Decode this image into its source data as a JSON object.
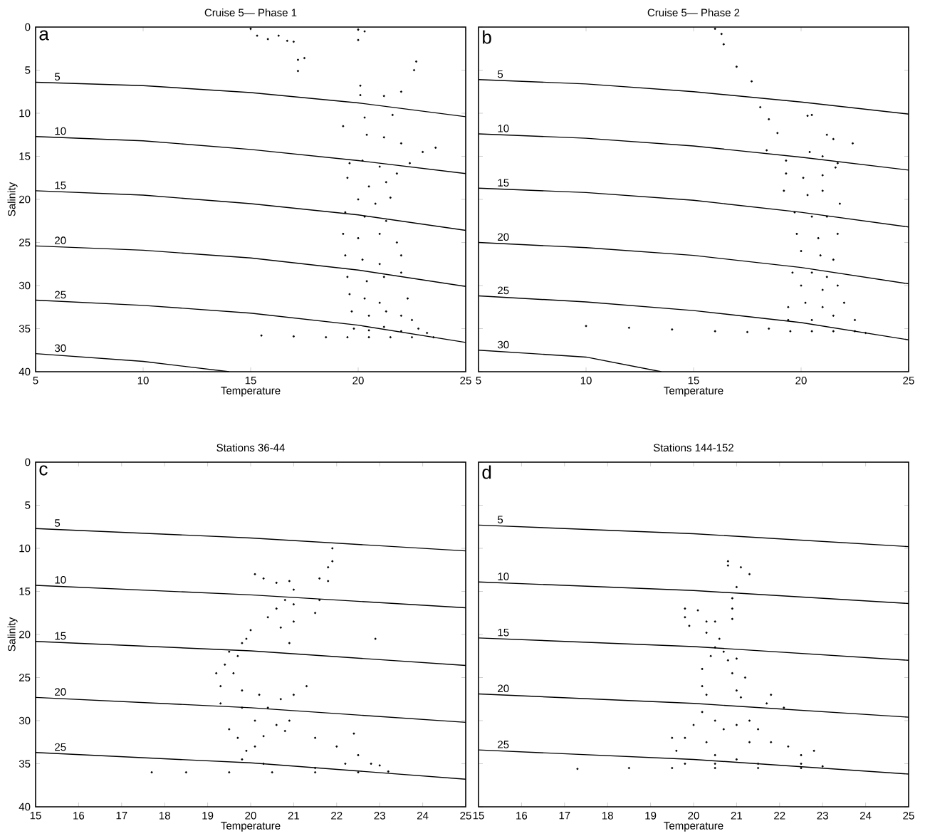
{
  "chart_data": [
    {
      "type": "scatter",
      "title": "Cruise 5— Phase 1",
      "xlabel": "Temperature",
      "ylabel": "Salinity",
      "annotations": [
        "a"
      ],
      "xlim": [
        5,
        25
      ],
      "ylim": [
        40,
        0
      ],
      "xticks": [
        5,
        10,
        15,
        20,
        25
      ],
      "yticks": [
        0,
        5,
        10,
        15,
        20,
        25,
        30,
        35,
        40
      ],
      "series": [
        {
          "color": "#000000",
          "marker": "circle",
          "x": [
            15,
            15.3,
            15.8,
            16.3,
            16.7,
            17.0,
            17.2,
            17.5,
            17.2,
            20.0,
            20.3,
            20.0,
            22.7,
            22.6,
            20.1,
            20.1,
            21.2,
            22.0,
            19.3,
            20.3,
            21.6,
            20.4,
            21.2,
            22.0,
            23.6,
            23.0,
            19.6,
            20.2,
            21.0,
            21.8,
            22.4,
            19.5,
            20.5,
            21.3,
            20.0,
            20.8,
            21.5,
            19.4,
            20.3,
            21.3,
            19.3,
            20.0,
            21.0,
            21.8,
            19.4,
            20.2,
            21.0,
            22.0,
            19.5,
            20.4,
            21.2,
            22.0,
            19.6,
            20.3,
            21.0,
            22.3,
            19.7,
            20.5,
            21.3,
            22.0,
            22.5,
            19.8,
            20.5,
            21.2,
            22.0,
            22.8,
            23.2,
            15.5,
            17.0,
            18.5,
            19.5,
            20.5,
            21.5,
            22.5,
            23.5
          ],
          "values": [
            0.2,
            1,
            1.4,
            1.0,
            1.6,
            1.7,
            3.8,
            3.6,
            5.1,
            0.3,
            0.5,
            1.5,
            4.0,
            5.0,
            6.8,
            7.9,
            8.0,
            7.5,
            11.5,
            10.5,
            10.2,
            12.5,
            12.8,
            13.5,
            14.0,
            14.5,
            15.8,
            15.5,
            16.2,
            17.0,
            15.8,
            17.5,
            18.5,
            18.0,
            20.0,
            20.5,
            19.8,
            21.5,
            22.0,
            22.5,
            24.0,
            24.5,
            24.0,
            25.0,
            26.5,
            27.0,
            27.5,
            26.5,
            29.0,
            29.5,
            29.0,
            28.5,
            31.0,
            31.5,
            32.0,
            31.5,
            33.0,
            33.5,
            33.0,
            33.5,
            34.0,
            35.0,
            35.2,
            34.8,
            35.3,
            35.0,
            35.5,
            35.8,
            35.9,
            36.0,
            36.0,
            36.0,
            36.0,
            36.0,
            36.0
          ]
        },
        {
          "type": "line",
          "name": "5",
          "color": "#000000",
          "x": [
            5,
            10,
            15,
            20,
            25
          ],
          "values": [
            6.4,
            6.8,
            7.6,
            8.8,
            10.4
          ]
        },
        {
          "type": "line",
          "name": "10",
          "color": "#000000",
          "x": [
            5,
            10,
            15,
            20,
            25
          ],
          "values": [
            12.7,
            13.2,
            14.2,
            15.5,
            17.0
          ]
        },
        {
          "type": "line",
          "name": "15",
          "color": "#000000",
          "x": [
            5,
            10,
            15,
            20,
            25
          ],
          "values": [
            19.0,
            19.5,
            20.5,
            21.8,
            23.6
          ]
        },
        {
          "type": "line",
          "name": "20",
          "color": "#000000",
          "x": [
            5,
            10,
            15,
            20,
            25
          ],
          "values": [
            25.4,
            25.9,
            26.8,
            28.2,
            30.1
          ]
        },
        {
          "type": "line",
          "name": "25",
          "color": "#000000",
          "x": [
            5,
            10,
            15,
            20,
            25
          ],
          "values": [
            31.7,
            32.3,
            33.2,
            34.6,
            36.6
          ]
        },
        {
          "type": "line",
          "name": "30",
          "color": "#000000",
          "x": [
            5,
            10,
            14
          ],
          "values": [
            37.9,
            38.8,
            40
          ]
        }
      ]
    },
    {
      "type": "scatter",
      "title": "Cruise 5— Phase 2",
      "xlabel": "Temperature",
      "annotations": [
        "b"
      ],
      "tick_labels": "x",
      "xlim": [
        5,
        25
      ],
      "ylim": [
        40,
        0
      ],
      "xticks": [
        5,
        10,
        15,
        20,
        25
      ],
      "yticks": [
        0,
        5,
        10,
        15,
        20,
        25,
        30,
        35,
        40
      ],
      "series": [
        {
          "color": "#000000",
          "marker": "circle",
          "x": [
            16.0,
            16.3,
            16.4,
            17.0,
            17.7,
            18.1,
            18.5,
            18.9,
            20.3,
            20.5,
            21.2,
            21.5,
            22.4,
            18.4,
            19.3,
            20.4,
            21.0,
            21.7,
            19.3,
            20.1,
            21.0,
            21.6,
            19.2,
            20.3,
            21.0,
            21.8,
            19.7,
            20.5,
            21.2,
            19.8,
            20.8,
            21.7,
            20.0,
            20.9,
            21.5,
            19.6,
            20.5,
            21.2,
            20.0,
            21.0,
            21.7,
            19.4,
            20.2,
            21.0,
            22.0,
            19.4,
            20.5,
            21.5,
            22.5,
            18.5,
            19.5,
            20.5,
            21.5,
            22.5,
            23.0,
            10.0,
            12.0,
            14.0,
            16.0,
            17.5
          ],
          "values": [
            0.2,
            0.8,
            2.0,
            4.6,
            6.3,
            9.3,
            10.7,
            12.3,
            10.3,
            10.2,
            12.5,
            13.0,
            13.5,
            14.3,
            15.5,
            14.5,
            15.0,
            15.8,
            17.0,
            17.5,
            17.2,
            16.3,
            19.0,
            19.5,
            19.0,
            20.5,
            21.5,
            22.0,
            22.0,
            24.0,
            24.5,
            24.0,
            26.0,
            26.5,
            27.0,
            28.5,
            28.5,
            29.0,
            30.0,
            30.5,
            30.0,
            32.5,
            32.0,
            32.5,
            32.0,
            34.0,
            34.0,
            33.5,
            34.0,
            35.0,
            35.3,
            35.3,
            35.3,
            35.3,
            35.5,
            34.7,
            34.9,
            35.1,
            35.3,
            35.4
          ]
        },
        {
          "type": "line",
          "name": "5",
          "color": "#000000",
          "x": [
            5,
            10,
            15,
            20,
            25
          ],
          "values": [
            6.1,
            6.6,
            7.5,
            8.7,
            10.1
          ]
        },
        {
          "type": "line",
          "name": "10",
          "color": "#000000",
          "x": [
            5,
            10,
            15,
            20,
            25
          ],
          "values": [
            12.4,
            12.9,
            13.8,
            15.1,
            16.6
          ]
        },
        {
          "type": "line",
          "name": "15",
          "color": "#000000",
          "x": [
            5,
            10,
            15,
            20,
            25
          ],
          "values": [
            18.7,
            19.2,
            20.1,
            21.5,
            23.2
          ]
        },
        {
          "type": "line",
          "name": "20",
          "color": "#000000",
          "x": [
            5,
            10,
            15,
            20,
            25
          ],
          "values": [
            25.0,
            25.6,
            26.5,
            27.9,
            29.8
          ]
        },
        {
          "type": "line",
          "name": "25",
          "color": "#000000",
          "x": [
            5,
            10,
            15,
            20,
            25
          ],
          "values": [
            31.2,
            31.9,
            32.9,
            34.3,
            36.3
          ]
        },
        {
          "type": "line",
          "name": "30",
          "color": "#000000",
          "x": [
            5,
            10,
            13.5
          ],
          "values": [
            37.5,
            38.3,
            40
          ]
        }
      ]
    },
    {
      "type": "scatter",
      "title": "Stations 36-44",
      "xlabel": "Temperature",
      "ylabel": "Salinity",
      "annotations": [
        "c"
      ],
      "xlim": [
        15,
        25
      ],
      "ylim": [
        40,
        0
      ],
      "xticks": [
        15,
        16,
        17,
        18,
        19,
        20,
        21,
        22,
        23,
        24,
        25
      ],
      "yticks": [
        0,
        5,
        10,
        15,
        20,
        25,
        30,
        35,
        40
      ],
      "series": [
        {
          "color": "#000000",
          "marker": "circle",
          "x": [
            21.9,
            21.9,
            21.8,
            21.6,
            21.8,
            20.1,
            20.3,
            20.6,
            20.9,
            21.0,
            20.8,
            21.0,
            21.6,
            21.5,
            20.6,
            20.4,
            21.0,
            20.7,
            20.0,
            19.9,
            19.8,
            20.9,
            22.9,
            19.5,
            19.7,
            19.4,
            19.2,
            19.6,
            19.3,
            19.8,
            20.2,
            21.3,
            21.0,
            20.7,
            19.3,
            19.8,
            20.4,
            20.1,
            20.6,
            20.9,
            19.5,
            19.7,
            20.3,
            20.8,
            21.5,
            22.0,
            22.4,
            19.9,
            20.1,
            22.5,
            19.8,
            20.3,
            21.5,
            22.2,
            22.8,
            23.0,
            17.7,
            18.5,
            19.5,
            20.5,
            21.5,
            22.5,
            23.2
          ],
          "values": [
            10.0,
            11.5,
            12.2,
            13.5,
            13.8,
            13.0,
            13.5,
            14.0,
            13.8,
            14.8,
            16.0,
            16.5,
            16.0,
            17.5,
            17.0,
            18.0,
            18.5,
            19.2,
            19.5,
            20.5,
            21.0,
            21.0,
            20.5,
            22.0,
            22.5,
            23.5,
            24.5,
            24.5,
            26.0,
            26.5,
            27.0,
            26.0,
            27.0,
            27.5,
            28.0,
            28.5,
            28.5,
            30.0,
            30.5,
            30.0,
            31.0,
            32.0,
            31.8,
            31.2,
            32.0,
            33.0,
            31.5,
            33.5,
            33.0,
            34.0,
            34.5,
            35.0,
            35.5,
            35.0,
            35.0,
            35.2,
            36.0,
            36.0,
            36.0,
            36.0,
            36.0,
            36.0,
            35.9
          ]
        },
        {
          "type": "line",
          "name": "5",
          "color": "#000000",
          "x": [
            15,
            20,
            25
          ],
          "values": [
            7.7,
            8.8,
            10.3
          ]
        },
        {
          "type": "line",
          "name": "10",
          "color": "#000000",
          "x": [
            15,
            20,
            25
          ],
          "values": [
            14.3,
            15.4,
            16.9
          ]
        },
        {
          "type": "line",
          "name": "15",
          "color": "#000000",
          "x": [
            15,
            20,
            25
          ],
          "values": [
            20.8,
            21.9,
            23.6
          ]
        },
        {
          "type": "line",
          "name": "20",
          "color": "#000000",
          "x": [
            15,
            20,
            25
          ],
          "values": [
            27.3,
            28.5,
            30.2
          ]
        },
        {
          "type": "line",
          "name": "25",
          "color": "#000000",
          "x": [
            15,
            20,
            25
          ],
          "values": [
            33.7,
            34.9,
            36.8
          ]
        }
      ]
    },
    {
      "type": "scatter",
      "title": "Stations 144-152",
      "xlabel": "Temperature",
      "annotations": [
        "d"
      ],
      "tick_labels": "x",
      "xlim": [
        15,
        25
      ],
      "ylim": [
        40,
        0
      ],
      "xticks": [
        15,
        16,
        17,
        18,
        19,
        20,
        21,
        22,
        23,
        24,
        25
      ],
      "yticks": [
        0,
        5,
        10,
        15,
        20,
        25,
        30,
        35,
        40
      ],
      "series": [
        {
          "color": "#000000",
          "marker": "circle",
          "x": [
            20.8,
            20.8,
            21.1,
            21.3,
            21.0,
            20.9,
            20.9,
            20.9,
            19.8,
            19.8,
            20.1,
            20.3,
            20.5,
            19.9,
            20.3,
            20.6,
            20.5,
            20.7,
            20.4,
            20.8,
            21.0,
            20.2,
            20.9,
            21.2,
            20.2,
            21.0,
            21.1,
            20.3,
            21.8,
            22.1,
            21.7,
            20.2,
            20.0,
            20.5,
            20.7,
            21.0,
            21.3,
            21.5,
            19.5,
            19.8,
            20.3,
            21.3,
            21.8,
            22.2,
            22.8,
            19.6,
            20.5,
            21.0,
            22.5,
            19.8,
            20.5,
            21.5,
            22.5,
            23.0,
            17.3,
            18.5,
            19.5,
            20.5,
            21.5,
            22.5
          ],
          "values": [
            11.5,
            12.0,
            12.2,
            13.0,
            14.5,
            15.8,
            17.0,
            18.2,
            17.0,
            18.0,
            17.2,
            18.5,
            18.5,
            19.0,
            19.8,
            20.5,
            21.5,
            22.0,
            22.5,
            23.0,
            22.8,
            24.0,
            24.5,
            25.0,
            26.0,
            26.5,
            27.3,
            27.0,
            27.0,
            28.5,
            28.0,
            29.0,
            30.5,
            30.0,
            31.0,
            30.5,
            30.0,
            31.0,
            32.0,
            32.0,
            32.5,
            32.5,
            32.5,
            33.0,
            33.5,
            33.5,
            34.0,
            34.5,
            34.0,
            35.0,
            35.0,
            35.0,
            35.0,
            35.3,
            35.6,
            35.5,
            35.5,
            35.5,
            35.5,
            35.5
          ]
        },
        {
          "type": "line",
          "name": "5",
          "color": "#000000",
          "x": [
            15,
            20,
            25
          ],
          "values": [
            7.3,
            8.3,
            9.8
          ]
        },
        {
          "type": "line",
          "name": "10",
          "color": "#000000",
          "x": [
            15,
            20,
            25
          ],
          "values": [
            13.9,
            14.9,
            16.4
          ]
        },
        {
          "type": "line",
          "name": "15",
          "color": "#000000",
          "x": [
            15,
            20,
            25
          ],
          "values": [
            20.4,
            21.4,
            23.0
          ]
        },
        {
          "type": "line",
          "name": "20",
          "color": "#000000",
          "x": [
            15,
            20,
            25
          ],
          "values": [
            26.9,
            28.0,
            29.6
          ]
        },
        {
          "type": "line",
          "name": "25",
          "color": "#000000",
          "x": [
            15,
            20,
            25
          ],
          "values": [
            33.4,
            34.5,
            36.2
          ]
        }
      ]
    }
  ]
}
